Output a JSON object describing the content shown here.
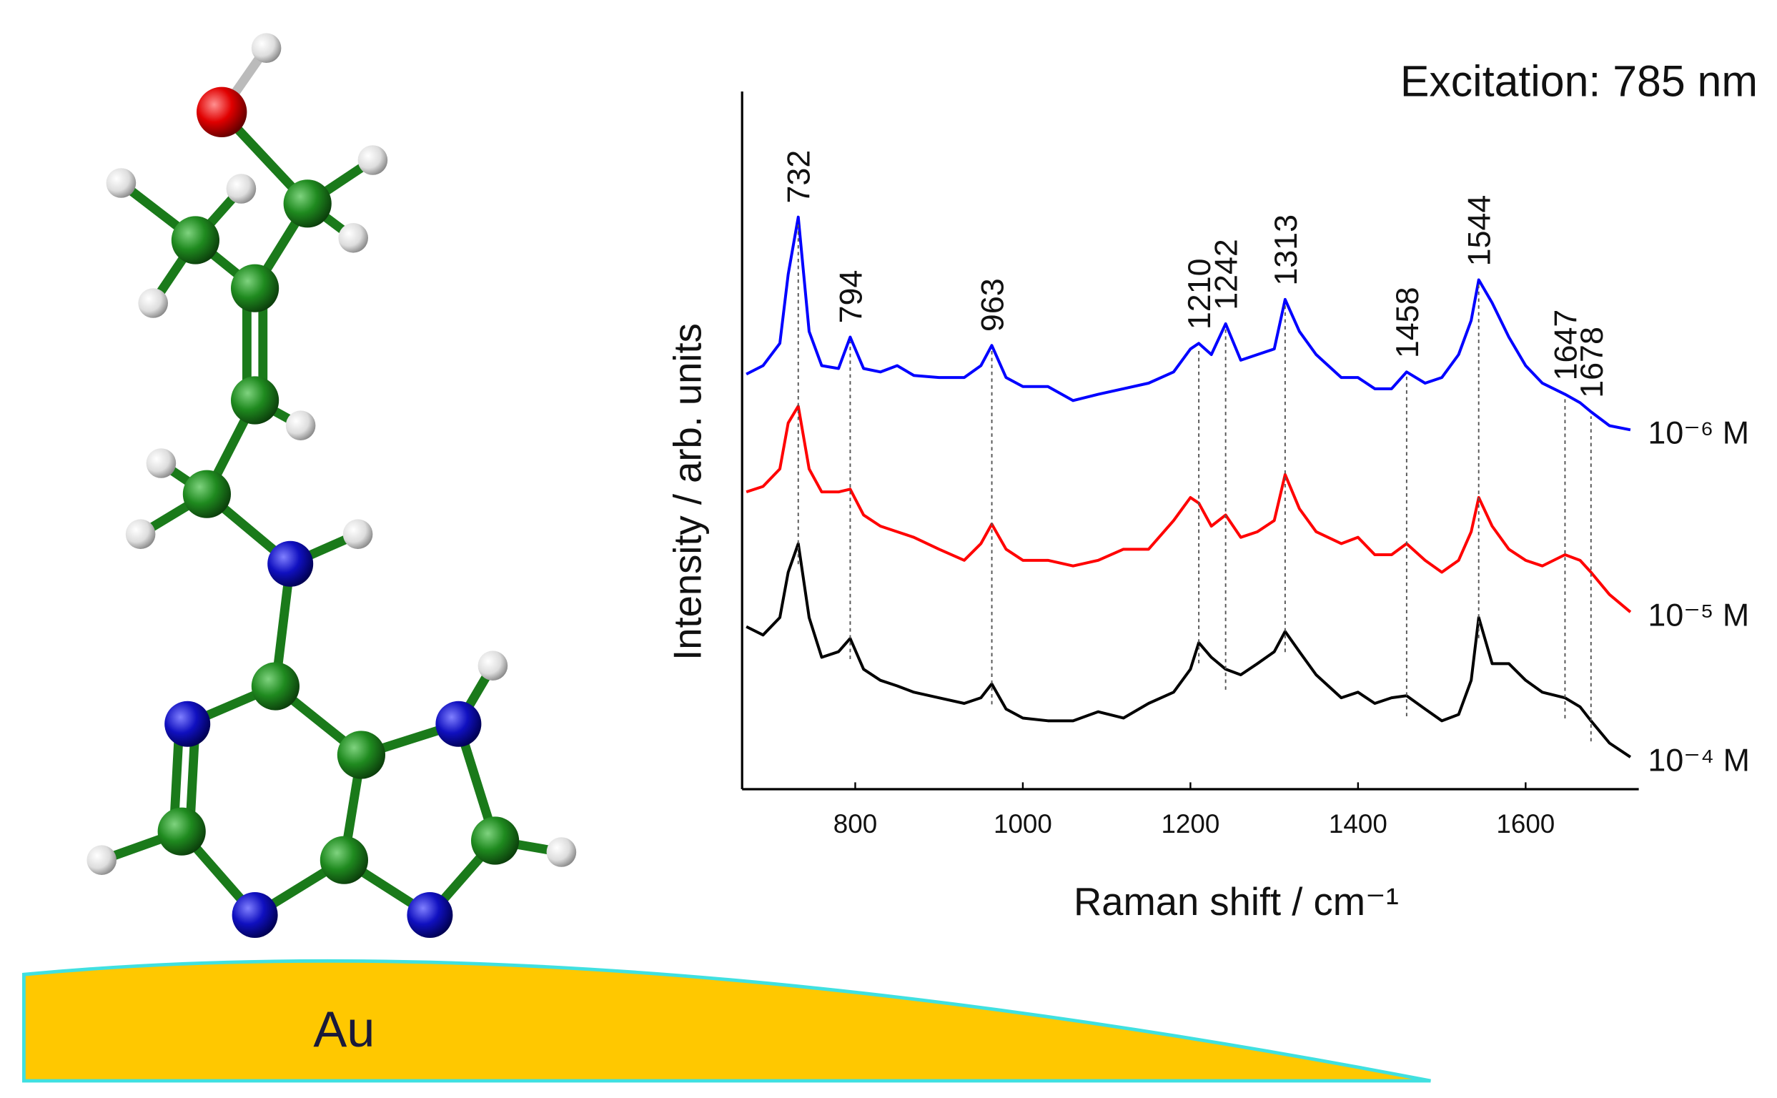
{
  "substrate_label": "Au",
  "chart_data": {
    "type": "line",
    "title": "Excitation: 785 nm",
    "xlabel": "Raman shift / cm⁻¹",
    "ylabel": "Intensity / arb. units",
    "xlim": [
      665,
      1735
    ],
    "xticks": [
      800,
      1000,
      1200,
      1400,
      1600
    ],
    "ylim": [
      0,
      100
    ],
    "peak_labels": [
      732,
      794,
      963,
      1210,
      1242,
      1313,
      1458,
      1544,
      1647,
      1678
    ],
    "x": [
      670,
      690,
      710,
      720,
      732,
      745,
      760,
      780,
      794,
      810,
      830,
      850,
      870,
      900,
      930,
      950,
      963,
      980,
      1000,
      1030,
      1060,
      1090,
      1120,
      1150,
      1180,
      1200,
      1210,
      1225,
      1242,
      1260,
      1280,
      1300,
      1313,
      1330,
      1350,
      1380,
      1400,
      1420,
      1440,
      1458,
      1480,
      1500,
      1520,
      1535,
      1544,
      1560,
      1580,
      1600,
      1620,
      1647,
      1665,
      1678,
      1700,
      1725
    ],
    "series": [
      {
        "name": "10⁻⁶ M",
        "color": "#0000ff",
        "values": [
          59.5,
          60.7,
          63.9,
          73.8,
          82.0,
          65.6,
          60.7,
          60.3,
          64.8,
          60.3,
          59.8,
          60.7,
          59.3,
          59.0,
          59.0,
          60.7,
          63.6,
          59.0,
          57.7,
          57.7,
          55.7,
          56.6,
          57.4,
          58.2,
          59.8,
          63.1,
          63.9,
          62.3,
          66.7,
          61.5,
          62.3,
          63.1,
          70.2,
          65.6,
          62.3,
          59.0,
          59.0,
          57.4,
          57.4,
          59.8,
          58.2,
          59.0,
          62.3,
          67.2,
          73.0,
          69.7,
          64.8,
          60.7,
          58.2,
          56.6,
          55.4,
          54.1,
          52.1,
          51.5
        ]
      },
      {
        "name": "10⁻⁵ M",
        "color": "#ff0000",
        "values": [
          42.6,
          43.4,
          45.9,
          52.5,
          54.9,
          45.9,
          42.6,
          42.6,
          43.0,
          39.3,
          37.7,
          36.9,
          36.1,
          34.4,
          32.8,
          35.2,
          38.0,
          34.4,
          32.8,
          32.8,
          32.0,
          32.8,
          34.4,
          34.4,
          38.5,
          41.8,
          41.0,
          37.7,
          39.3,
          36.1,
          36.9,
          38.5,
          45.1,
          40.2,
          36.9,
          35.2,
          36.1,
          33.6,
          33.6,
          35.2,
          32.8,
          31.1,
          32.8,
          36.9,
          41.8,
          37.7,
          34.4,
          32.8,
          32.0,
          33.6,
          32.8,
          31.1,
          27.9,
          25.4
        ]
      },
      {
        "name": "10⁻⁴ M",
        "color": "#000000",
        "values": [
          23.3,
          22.1,
          24.6,
          31.1,
          35.2,
          24.6,
          18.9,
          19.7,
          21.6,
          17.2,
          15.6,
          14.8,
          13.9,
          13.1,
          12.3,
          13.1,
          15.1,
          11.5,
          10.2,
          9.8,
          9.8,
          11.1,
          10.2,
          12.3,
          13.9,
          17.2,
          21.0,
          18.9,
          17.2,
          16.4,
          18.0,
          19.7,
          22.6,
          19.7,
          16.4,
          13.1,
          13.9,
          12.3,
          13.1,
          13.4,
          11.5,
          9.8,
          10.7,
          15.6,
          24.6,
          18.0,
          18.0,
          15.6,
          13.9,
          13.1,
          11.8,
          9.8,
          6.6,
          4.6
        ]
      }
    ]
  }
}
